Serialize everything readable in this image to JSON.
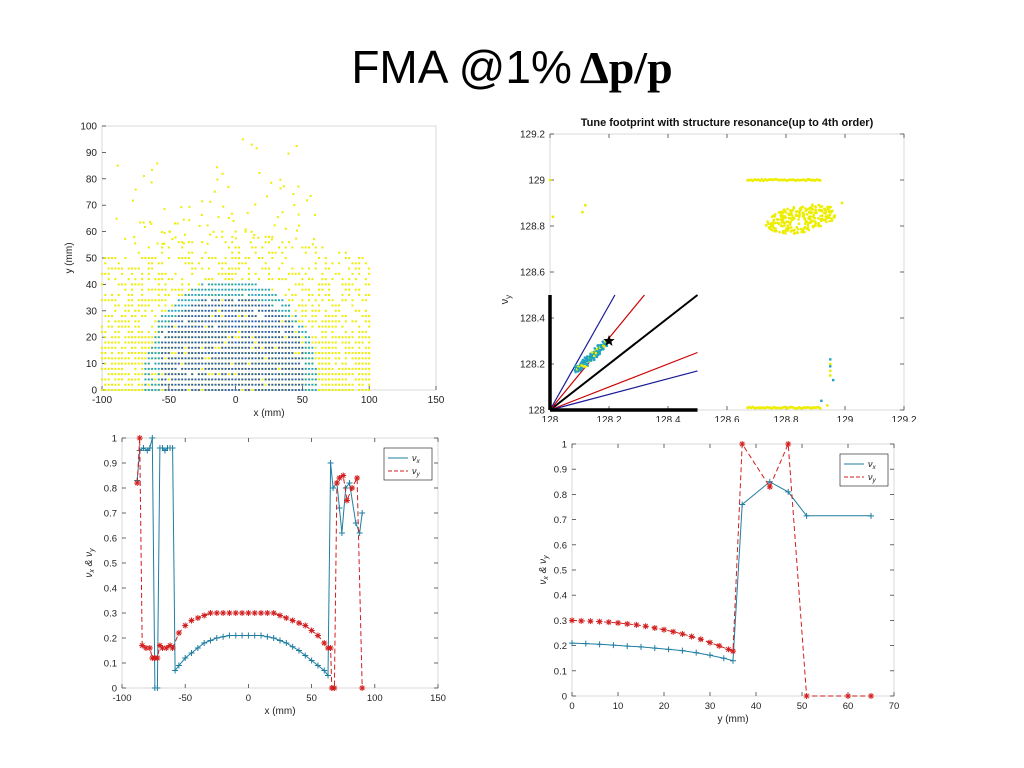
{
  "slide": {
    "title_main": "FMA @1%",
    "title_delta": "Δp/p"
  },
  "colors": {
    "yellow": "#eded00",
    "blue_dark": "#2b5fa8",
    "teal": "#1fa3c0",
    "nux_line": "#1f7ea0",
    "nuy_line": "#d21e1e",
    "resonance_black": "#000000",
    "resonance_red": "#cc0000",
    "resonance_blue": "#1a1a9a"
  },
  "chart_data": [
    {
      "id": "xy_map",
      "type": "scatter",
      "title": "",
      "xlabel": "x (mm)",
      "ylabel": "y (mm)",
      "xlim": [
        -100,
        150
      ],
      "ylim": [
        0,
        100
      ],
      "xticks": [
        -100,
        -50,
        0,
        50,
        100,
        150
      ],
      "yticks": [
        0,
        10,
        20,
        30,
        40,
        50,
        60,
        70,
        80,
        90,
        100
      ],
      "grid": false,
      "description_regions": {
        "yellow_region": {
          "x": [
            -100,
            100
          ],
          "y": [
            0,
            60
          ]
        },
        "blue_core": {
          "x": [
            -70,
            62
          ],
          "y": [
            0,
            38
          ]
        }
      }
    },
    {
      "id": "tune_footprint",
      "type": "scatter",
      "title": "Tune footprint with structure resonance(up to 4th order)",
      "xlabel": "",
      "ylabel": "ν_y",
      "ylabel_main": "ν",
      "ylabel_sub": "y",
      "xlim": [
        128,
        129.2
      ],
      "ylim": [
        128,
        129.2
      ],
      "xticks": [
        "128",
        "128.2",
        "128.4",
        "128.6",
        "128.8",
        "129",
        "129.2"
      ],
      "yticks": [
        "128",
        "128.2",
        "128.4",
        "128.6",
        "128.8",
        "129",
        "129.2"
      ],
      "grid": false,
      "star_point": [
        128.2,
        128.3
      ],
      "yellow_cluster": {
        "center": [
          128.85,
          128.83
        ],
        "spread": [
          0.12,
          0.06
        ]
      },
      "top_yellow_line": {
        "x": [
          128.67,
          128.92
        ],
        "y": 129.0
      },
      "bottom_yellow_line": {
        "x": [
          128.67,
          128.92
        ],
        "y": 128.01
      },
      "resonance_lines": [
        {
          "color": "black",
          "from": [
            128,
            128
          ],
          "to": [
            128.5,
            128.5
          ]
        },
        {
          "color": "red",
          "from": [
            128,
            128
          ],
          "to": [
            128.32,
            128.5
          ]
        },
        {
          "color": "blue",
          "from": [
            128,
            128
          ],
          "to": [
            128.22,
            128.5
          ]
        },
        {
          "color": "red",
          "from": [
            128,
            128
          ],
          "to": [
            128.5,
            128.25
          ]
        },
        {
          "color": "blue",
          "from": [
            128,
            128
          ],
          "to": [
            128.5,
            128.17
          ]
        }
      ]
    },
    {
      "id": "tune_vs_x",
      "type": "line",
      "xlabel": "x (mm)",
      "ylabel": "ν_x & ν_y",
      "ylabel_main": "ν",
      "xlim": [
        -100,
        150
      ],
      "ylim": [
        0,
        1
      ],
      "xticks": [
        -100,
        -50,
        0,
        50,
        100,
        150
      ],
      "yticks": [
        "0",
        "0.1",
        "0.2",
        "0.3",
        "0.4",
        "0.5",
        "0.6",
        "0.7",
        "0.8",
        "0.9",
        "1"
      ],
      "legend_position": "top-right",
      "series": [
        {
          "name": "ν_x",
          "x": [
            -88,
            -86,
            -83,
            -80,
            -78,
            -76,
            -74,
            -72,
            -70,
            -68,
            -66,
            -64,
            -62,
            -60,
            -58,
            -55,
            -50,
            -45,
            -40,
            -35,
            -30,
            -25,
            -20,
            -15,
            -10,
            -5,
            0,
            5,
            10,
            15,
            20,
            25,
            30,
            35,
            40,
            45,
            50,
            55,
            60,
            63,
            65,
            67,
            70,
            72,
            74,
            77,
            80,
            85,
            88,
            90
          ],
          "y": [
            0.83,
            0.95,
            0.96,
            0.95,
            0.96,
            1.0,
            0.0,
            0.0,
            0.96,
            0.96,
            0.95,
            0.96,
            0.96,
            0.96,
            0.07,
            0.09,
            0.12,
            0.14,
            0.16,
            0.18,
            0.19,
            0.2,
            0.205,
            0.21,
            0.21,
            0.21,
            0.21,
            0.21,
            0.21,
            0.205,
            0.2,
            0.19,
            0.18,
            0.165,
            0.15,
            0.13,
            0.11,
            0.09,
            0.07,
            0.05,
            0.9,
            0.8,
            0.82,
            0.72,
            0.62,
            0.8,
            0.82,
            0.66,
            0.62,
            0.7
          ]
        },
        {
          "name": "ν_y",
          "x": [
            -88,
            -86,
            -84,
            -81,
            -78,
            -76,
            -74,
            -72,
            -70,
            -68,
            -65,
            -62,
            -60,
            -55,
            -50,
            -45,
            -40,
            -35,
            -30,
            -25,
            -20,
            -15,
            -10,
            -5,
            0,
            5,
            10,
            15,
            20,
            25,
            30,
            35,
            40,
            45,
            50,
            55,
            60,
            63,
            65,
            66,
            68,
            70,
            72,
            75,
            78,
            82,
            86,
            90
          ],
          "y": [
            0.82,
            1.0,
            0.17,
            0.16,
            0.16,
            0.12,
            0.12,
            0.12,
            0.17,
            0.16,
            0.16,
            0.17,
            0.16,
            0.22,
            0.25,
            0.27,
            0.28,
            0.29,
            0.3,
            0.3,
            0.3,
            0.3,
            0.3,
            0.3,
            0.3,
            0.3,
            0.3,
            0.3,
            0.3,
            0.29,
            0.28,
            0.27,
            0.26,
            0.25,
            0.23,
            0.21,
            0.18,
            0.16,
            0.16,
            0.0,
            0.0,
            0.82,
            0.84,
            0.85,
            0.75,
            0.8,
            0.84,
            0.0
          ]
        }
      ]
    },
    {
      "id": "tune_vs_y",
      "type": "line",
      "xlabel": "y (mm)",
      "ylabel": "ν_x & ν_y",
      "ylabel_main": "ν",
      "xlim": [
        0,
        70
      ],
      "ylim": [
        0,
        1
      ],
      "xticks": [
        0,
        10,
        20,
        30,
        40,
        50,
        60,
        70
      ],
      "yticks": [
        "0",
        "0.1",
        "0.2",
        "0.3",
        "0.4",
        "0.5",
        "0.6",
        "0.7",
        "0.8",
        "0.9",
        "1"
      ],
      "legend_position": "top-right",
      "series": [
        {
          "name": "ν_x",
          "x": [
            0,
            3,
            6,
            9,
            12,
            15,
            18,
            21,
            24,
            27,
            30,
            33,
            35,
            37,
            43,
            47,
            51,
            65
          ],
          "y": [
            0.21,
            0.208,
            0.205,
            0.202,
            0.198,
            0.195,
            0.19,
            0.185,
            0.18,
            0.172,
            0.162,
            0.15,
            0.14,
            0.76,
            0.85,
            0.81,
            0.715,
            0.715
          ]
        },
        {
          "name": "ν_y",
          "x": [
            0,
            2,
            4,
            6,
            8,
            10,
            12,
            14,
            16,
            18,
            20,
            22,
            24,
            26,
            28,
            30,
            32,
            34,
            35,
            37,
            43,
            47,
            51,
            60,
            65
          ],
          "y": [
            0.3,
            0.298,
            0.297,
            0.295,
            0.293,
            0.29,
            0.286,
            0.282,
            0.277,
            0.27,
            0.263,
            0.255,
            0.246,
            0.236,
            0.225,
            0.212,
            0.199,
            0.185,
            0.178,
            1.0,
            0.83,
            1.0,
            0.0,
            0.0,
            0.0
          ]
        }
      ]
    }
  ]
}
